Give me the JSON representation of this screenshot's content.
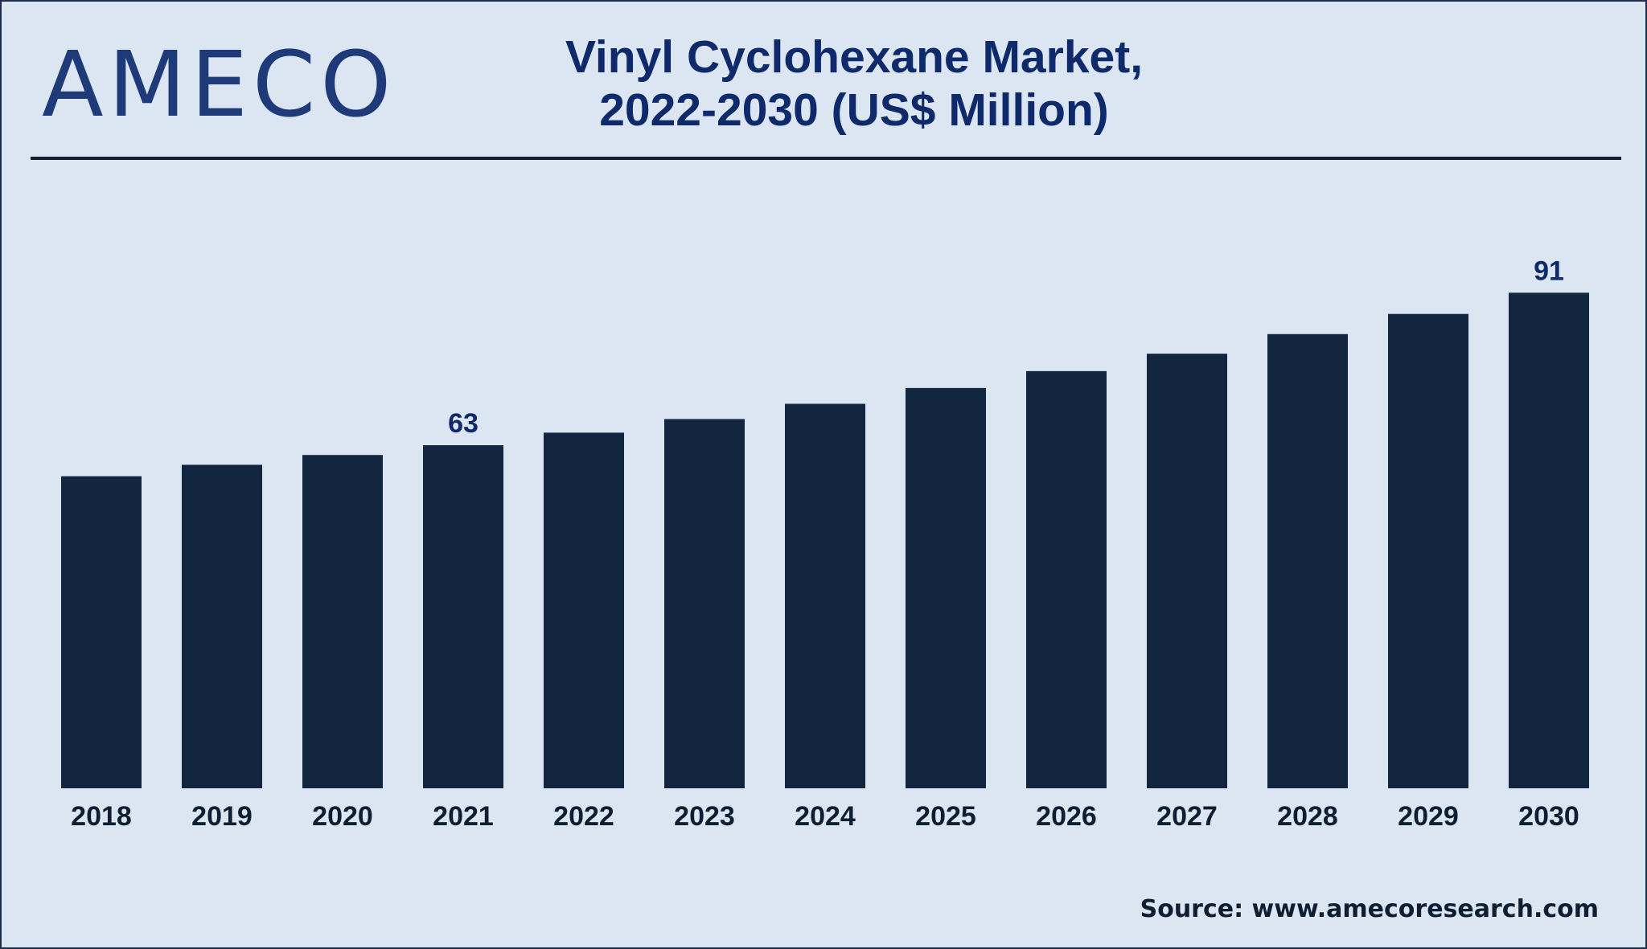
{
  "brand": {
    "logo_text": "AMECO"
  },
  "chart_data": {
    "type": "bar",
    "title": "Vinyl Cyclohexane Market,",
    "subtitle": "2022-2030 (US$ Million)",
    "categories": [
      "2018",
      "2019",
      "2020",
      "2021",
      "2022",
      "2023",
      "2024",
      "2025",
      "2026",
      "2027",
      "2028",
      "2029",
      "2030"
    ],
    "values": [
      57.3,
      59.4,
      61.2,
      63,
      65.3,
      67.8,
      70.6,
      73.5,
      76.6,
      79.8,
      83.4,
      87.1,
      91
    ],
    "data_labels": [
      {
        "category": "2021",
        "text": "63"
      },
      {
        "category": "2030",
        "text": "91"
      }
    ],
    "ylim": [
      0,
      100
    ],
    "xlabel": "",
    "ylabel": "",
    "grid": false,
    "bar_color": "#12263f"
  },
  "footer": {
    "source": "Source: www.amecoresearch.com"
  }
}
